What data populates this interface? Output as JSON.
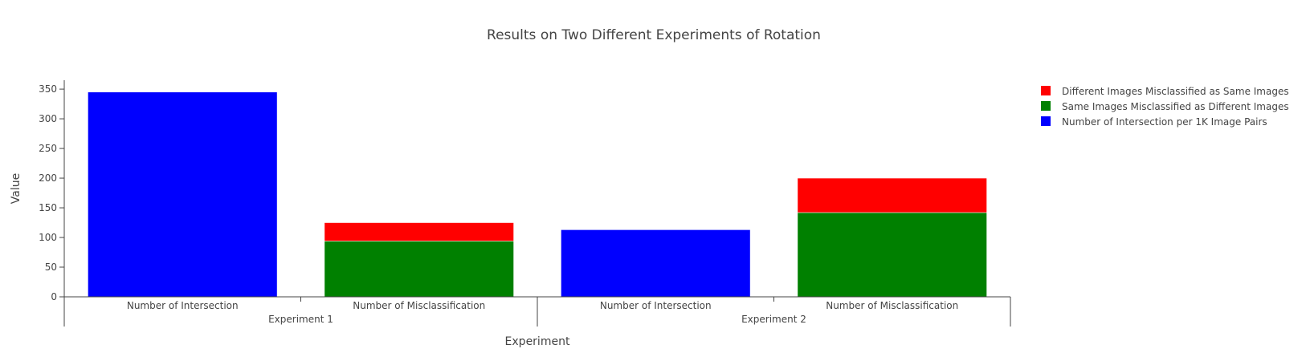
{
  "chart_data": {
    "type": "bar",
    "barmode": "stack",
    "title": "Results on Two Different Experiments of Rotation",
    "xlabel": "Experiment",
    "ylabel": "Value",
    "ylim": [
      0,
      365
    ],
    "yticks": [
      0,
      50,
      100,
      150,
      200,
      250,
      300,
      350
    ],
    "grid": false,
    "legend_position": "top-right",
    "groups": [
      "Experiment 1",
      "Experiment 2"
    ],
    "categories": [
      {
        "group": "Experiment 1",
        "label": "Number of Intersection"
      },
      {
        "group": "Experiment 1",
        "label": "Number of Misclassification"
      },
      {
        "group": "Experiment 2",
        "label": "Number of Intersection"
      },
      {
        "group": "Experiment 2",
        "label": "Number of Misclassification"
      }
    ],
    "series": [
      {
        "name": "Number of Intersection per 1K Image Pairs",
        "color": "#0000ff",
        "values": [
          345,
          null,
          113,
          null
        ]
      },
      {
        "name": "Same Images Misclassified as Different Images",
        "color": "#008000",
        "values": [
          null,
          94,
          null,
          142
        ]
      },
      {
        "name": "Different Images Misclassified as Same Images",
        "color": "#ff0000",
        "values": [
          null,
          31,
          null,
          58
        ]
      }
    ],
    "legend_order": [
      "Different Images Misclassified as Same Images",
      "Same Images Misclassified as Different Images",
      "Number of Intersection per 1K Image Pairs"
    ]
  }
}
